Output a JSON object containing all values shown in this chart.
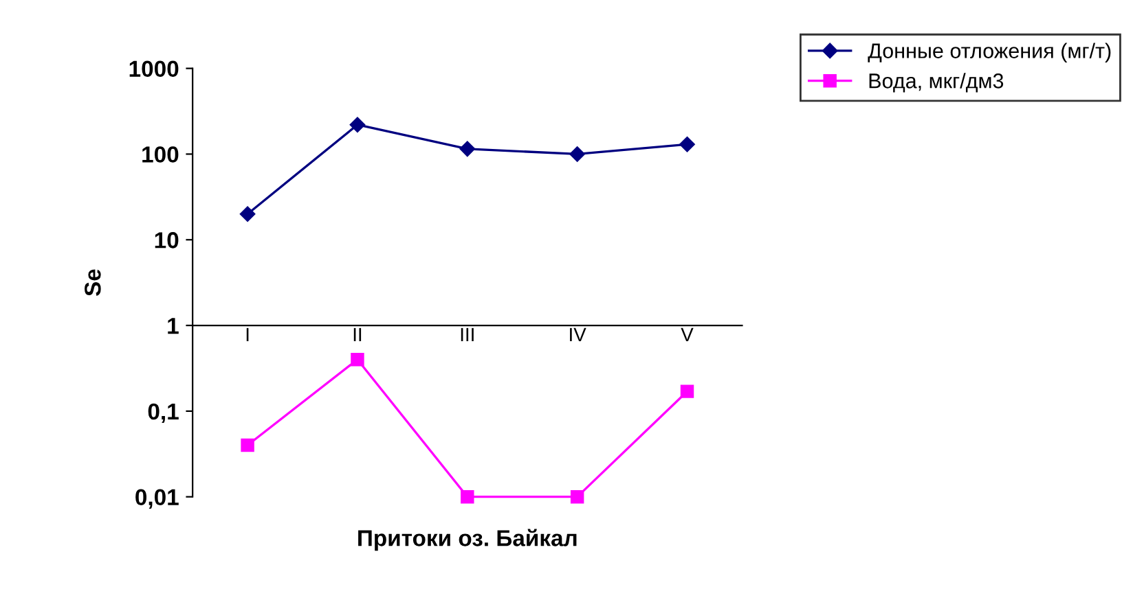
{
  "chart_data": {
    "type": "line",
    "ylabel": "Se",
    "xlabel": "Притоки оз. Байкал",
    "categories": [
      "I",
      "II",
      "III",
      "IV",
      "V"
    ],
    "series": [
      {
        "name": "Донные отложения (мг/т)",
        "color": "#000080",
        "marker": "diamond",
        "values": [
          20,
          220,
          115,
          100,
          130
        ]
      },
      {
        "name": "Вода, мкг/дм3",
        "color": "#ff00ff",
        "marker": "square",
        "values": [
          0.04,
          0.4,
          0.01,
          0.01,
          0.17
        ]
      }
    ],
    "log": "y",
    "ylim": [
      0.01,
      1000
    ],
    "yticks": [
      {
        "value": 0.01,
        "label": "0,01"
      },
      {
        "value": 0.1,
        "label": "0,1"
      },
      1,
      10,
      100,
      1000
    ],
    "grid": false,
    "legend": "top right",
    "line_style": "solid"
  }
}
